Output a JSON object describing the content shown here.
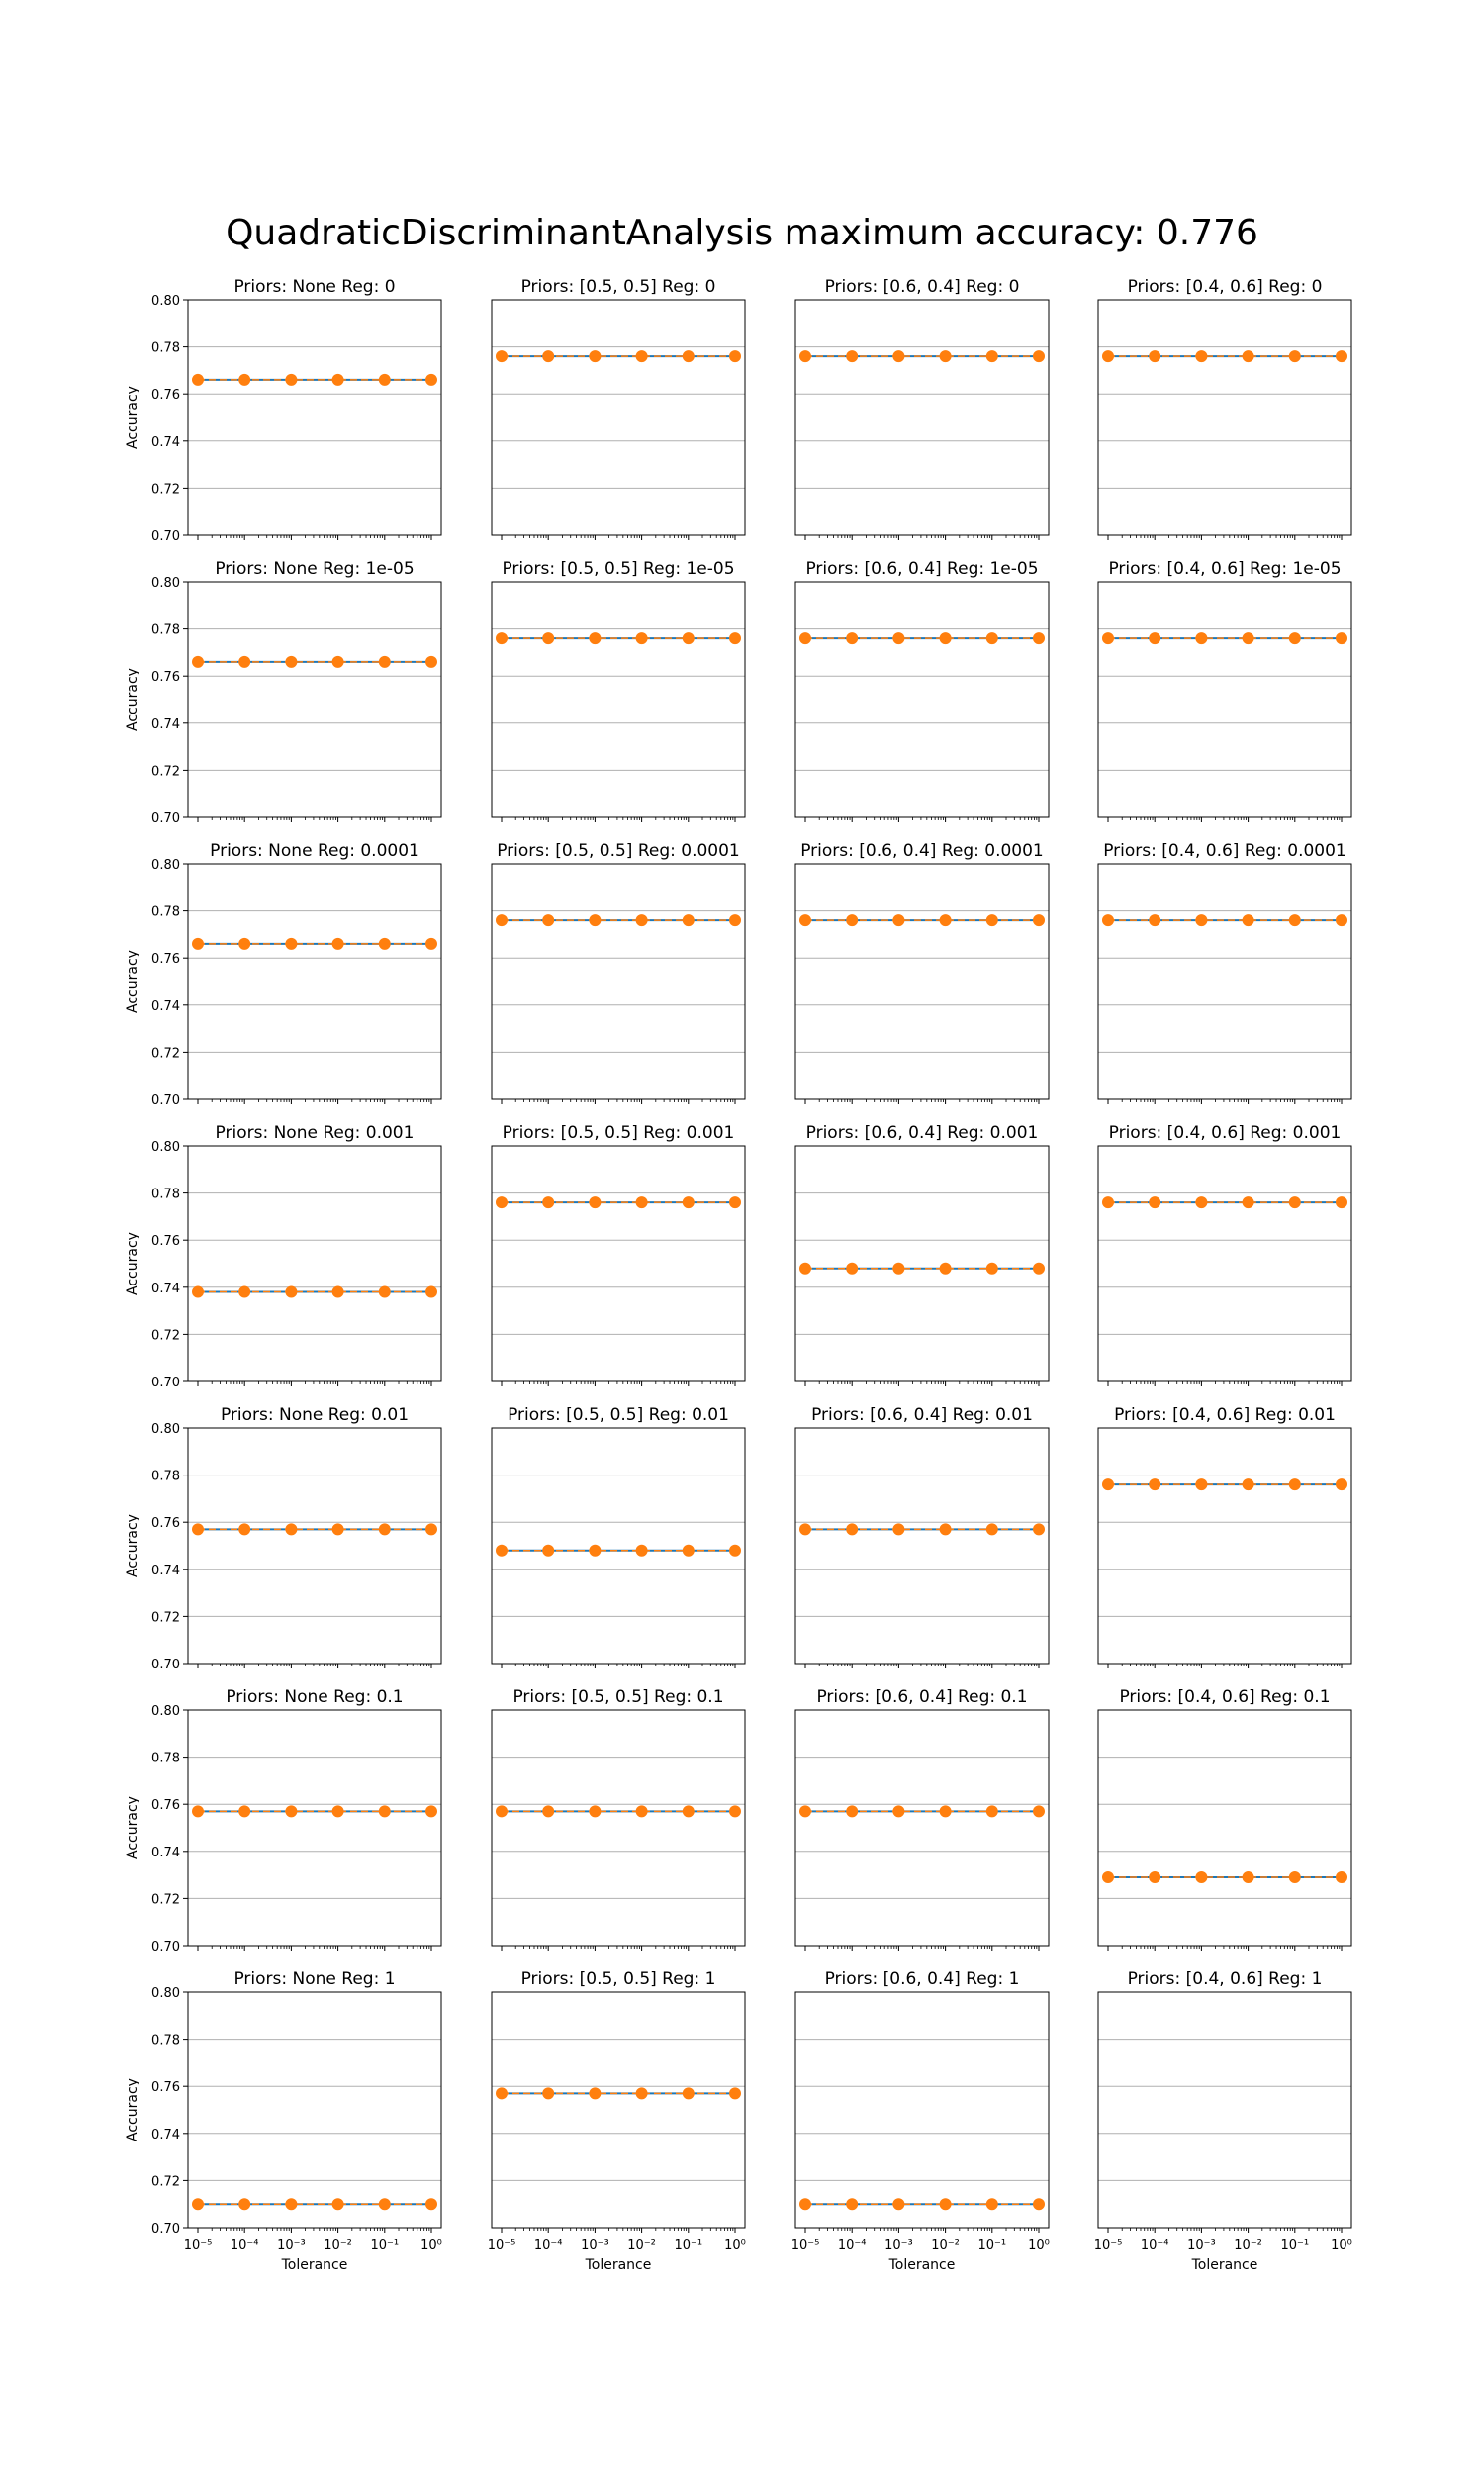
{
  "figure": {
    "suptitle": "QuadraticDiscriminantAnalysis maximum accuracy: 0.776",
    "colors": {
      "line": "#1f77b4",
      "marker": "#ff7f0e",
      "grid": "#b0b0b0",
      "axes": "#000000"
    }
  },
  "chart_data": [
    {
      "type": "line",
      "title": "Priors: None Reg: 0",
      "ylabel": "Accuracy",
      "xlabel": "",
      "xscale": "log",
      "ylim": [
        0.7,
        0.8
      ],
      "yticks": [
        "0.70",
        "0.72",
        "0.74",
        "0.76",
        "0.78",
        "0.80"
      ],
      "xticks": [
        "10⁻⁵",
        "10⁻⁴",
        "10⁻³",
        "10⁻²",
        "10⁻¹",
        "10⁰"
      ],
      "grid": "y",
      "x": [
        1e-05,
        0.0001,
        0.001,
        0.01,
        0.1,
        1
      ],
      "series": [
        {
          "values": [
            0.766,
            0.766,
            0.766,
            0.766,
            0.766,
            0.766
          ]
        }
      ]
    },
    {
      "type": "line",
      "title": "Priors: [0.5, 0.5] Reg: 0",
      "ylabel": "",
      "xlabel": "",
      "xscale": "log",
      "ylim": [
        0.7,
        0.8
      ],
      "yticks": [],
      "xticks": [
        "10⁻⁵",
        "10⁻⁴",
        "10⁻³",
        "10⁻²",
        "10⁻¹",
        "10⁰"
      ],
      "grid": "y",
      "x": [
        1e-05,
        0.0001,
        0.001,
        0.01,
        0.1,
        1
      ],
      "series": [
        {
          "values": [
            0.776,
            0.776,
            0.776,
            0.776,
            0.776,
            0.776
          ]
        }
      ]
    },
    {
      "type": "line",
      "title": "Priors: [0.6, 0.4] Reg: 0",
      "ylabel": "",
      "xlabel": "",
      "xscale": "log",
      "ylim": [
        0.7,
        0.8
      ],
      "yticks": [],
      "xticks": [
        "10⁻⁵",
        "10⁻⁴",
        "10⁻³",
        "10⁻²",
        "10⁻¹",
        "10⁰"
      ],
      "grid": "y",
      "x": [
        1e-05,
        0.0001,
        0.001,
        0.01,
        0.1,
        1
      ],
      "series": [
        {
          "values": [
            0.776,
            0.776,
            0.776,
            0.776,
            0.776,
            0.776
          ]
        }
      ]
    },
    {
      "type": "line",
      "title": "Priors: [0.4, 0.6] Reg: 0",
      "ylabel": "",
      "xlabel": "",
      "xscale": "log",
      "ylim": [
        0.7,
        0.8
      ],
      "yticks": [],
      "xticks": [
        "10⁻⁵",
        "10⁻⁴",
        "10⁻³",
        "10⁻²",
        "10⁻¹",
        "10⁰"
      ],
      "grid": "y",
      "x": [
        1e-05,
        0.0001,
        0.001,
        0.01,
        0.1,
        1
      ],
      "series": [
        {
          "values": [
            0.776,
            0.776,
            0.776,
            0.776,
            0.776,
            0.776
          ]
        }
      ]
    },
    {
      "type": "line",
      "title": "Priors: None Reg: 1e-05",
      "ylabel": "Accuracy",
      "xlabel": "",
      "xscale": "log",
      "ylim": [
        0.7,
        0.8
      ],
      "yticks": [
        "0.70",
        "0.72",
        "0.74",
        "0.76",
        "0.78",
        "0.80"
      ],
      "xticks": [
        "10⁻⁵",
        "10⁻⁴",
        "10⁻³",
        "10⁻²",
        "10⁻¹",
        "10⁰"
      ],
      "grid": "y",
      "x": [
        1e-05,
        0.0001,
        0.001,
        0.01,
        0.1,
        1
      ],
      "series": [
        {
          "values": [
            0.766,
            0.766,
            0.766,
            0.766,
            0.766,
            0.766
          ]
        }
      ]
    },
    {
      "type": "line",
      "title": "Priors: [0.5, 0.5] Reg: 1e-05",
      "ylabel": "",
      "xlabel": "",
      "xscale": "log",
      "ylim": [
        0.7,
        0.8
      ],
      "yticks": [],
      "xticks": [
        "10⁻⁵",
        "10⁻⁴",
        "10⁻³",
        "10⁻²",
        "10⁻¹",
        "10⁰"
      ],
      "grid": "y",
      "x": [
        1e-05,
        0.0001,
        0.001,
        0.01,
        0.1,
        1
      ],
      "series": [
        {
          "values": [
            0.776,
            0.776,
            0.776,
            0.776,
            0.776,
            0.776
          ]
        }
      ]
    },
    {
      "type": "line",
      "title": "Priors: [0.6, 0.4] Reg: 1e-05",
      "ylabel": "",
      "xlabel": "",
      "xscale": "log",
      "ylim": [
        0.7,
        0.8
      ],
      "yticks": [],
      "xticks": [
        "10⁻⁵",
        "10⁻⁴",
        "10⁻³",
        "10⁻²",
        "10⁻¹",
        "10⁰"
      ],
      "grid": "y",
      "x": [
        1e-05,
        0.0001,
        0.001,
        0.01,
        0.1,
        1
      ],
      "series": [
        {
          "values": [
            0.776,
            0.776,
            0.776,
            0.776,
            0.776,
            0.776
          ]
        }
      ]
    },
    {
      "type": "line",
      "title": "Priors: [0.4, 0.6] Reg: 1e-05",
      "ylabel": "",
      "xlabel": "",
      "xscale": "log",
      "ylim": [
        0.7,
        0.8
      ],
      "yticks": [],
      "xticks": [
        "10⁻⁵",
        "10⁻⁴",
        "10⁻³",
        "10⁻²",
        "10⁻¹",
        "10⁰"
      ],
      "grid": "y",
      "x": [
        1e-05,
        0.0001,
        0.001,
        0.01,
        0.1,
        1
      ],
      "series": [
        {
          "values": [
            0.776,
            0.776,
            0.776,
            0.776,
            0.776,
            0.776
          ]
        }
      ]
    },
    {
      "type": "line",
      "title": "Priors: None Reg: 0.0001",
      "ylabel": "Accuracy",
      "xlabel": "",
      "xscale": "log",
      "ylim": [
        0.7,
        0.8
      ],
      "yticks": [
        "0.70",
        "0.72",
        "0.74",
        "0.76",
        "0.78",
        "0.80"
      ],
      "xticks": [
        "10⁻⁵",
        "10⁻⁴",
        "10⁻³",
        "10⁻²",
        "10⁻¹",
        "10⁰"
      ],
      "grid": "y",
      "x": [
        1e-05,
        0.0001,
        0.001,
        0.01,
        0.1,
        1
      ],
      "series": [
        {
          "values": [
            0.766,
            0.766,
            0.766,
            0.766,
            0.766,
            0.766
          ]
        }
      ]
    },
    {
      "type": "line",
      "title": "Priors: [0.5, 0.5] Reg: 0.0001",
      "ylabel": "",
      "xlabel": "",
      "xscale": "log",
      "ylim": [
        0.7,
        0.8
      ],
      "yticks": [],
      "xticks": [
        "10⁻⁵",
        "10⁻⁴",
        "10⁻³",
        "10⁻²",
        "10⁻¹",
        "10⁰"
      ],
      "grid": "y",
      "x": [
        1e-05,
        0.0001,
        0.001,
        0.01,
        0.1,
        1
      ],
      "series": [
        {
          "values": [
            0.776,
            0.776,
            0.776,
            0.776,
            0.776,
            0.776
          ]
        }
      ]
    },
    {
      "type": "line",
      "title": "Priors: [0.6, 0.4] Reg: 0.0001",
      "ylabel": "",
      "xlabel": "",
      "xscale": "log",
      "ylim": [
        0.7,
        0.8
      ],
      "yticks": [],
      "xticks": [
        "10⁻⁵",
        "10⁻⁴",
        "10⁻³",
        "10⁻²",
        "10⁻¹",
        "10⁰"
      ],
      "grid": "y",
      "x": [
        1e-05,
        0.0001,
        0.001,
        0.01,
        0.1,
        1
      ],
      "series": [
        {
          "values": [
            0.776,
            0.776,
            0.776,
            0.776,
            0.776,
            0.776
          ]
        }
      ]
    },
    {
      "type": "line",
      "title": "Priors: [0.4, 0.6] Reg: 0.0001",
      "ylabel": "",
      "xlabel": "",
      "xscale": "log",
      "ylim": [
        0.7,
        0.8
      ],
      "yticks": [],
      "xticks": [
        "10⁻⁵",
        "10⁻⁴",
        "10⁻³",
        "10⁻²",
        "10⁻¹",
        "10⁰"
      ],
      "grid": "y",
      "x": [
        1e-05,
        0.0001,
        0.001,
        0.01,
        0.1,
        1
      ],
      "series": [
        {
          "values": [
            0.776,
            0.776,
            0.776,
            0.776,
            0.776,
            0.776
          ]
        }
      ]
    },
    {
      "type": "line",
      "title": "Priors: None Reg: 0.001",
      "ylabel": "Accuracy",
      "xlabel": "",
      "xscale": "log",
      "ylim": [
        0.7,
        0.8
      ],
      "yticks": [
        "0.70",
        "0.72",
        "0.74",
        "0.76",
        "0.78",
        "0.80"
      ],
      "xticks": [
        "10⁻⁵",
        "10⁻⁴",
        "10⁻³",
        "10⁻²",
        "10⁻¹",
        "10⁰"
      ],
      "grid": "y",
      "x": [
        1e-05,
        0.0001,
        0.001,
        0.01,
        0.1,
        1
      ],
      "series": [
        {
          "values": [
            0.738,
            0.738,
            0.738,
            0.738,
            0.738,
            0.738
          ]
        }
      ]
    },
    {
      "type": "line",
      "title": "Priors: [0.5, 0.5] Reg: 0.001",
      "ylabel": "",
      "xlabel": "",
      "xscale": "log",
      "ylim": [
        0.7,
        0.8
      ],
      "yticks": [],
      "xticks": [
        "10⁻⁵",
        "10⁻⁴",
        "10⁻³",
        "10⁻²",
        "10⁻¹",
        "10⁰"
      ],
      "grid": "y",
      "x": [
        1e-05,
        0.0001,
        0.001,
        0.01,
        0.1,
        1
      ],
      "series": [
        {
          "values": [
            0.776,
            0.776,
            0.776,
            0.776,
            0.776,
            0.776
          ]
        }
      ]
    },
    {
      "type": "line",
      "title": "Priors: [0.6, 0.4] Reg: 0.001",
      "ylabel": "",
      "xlabel": "",
      "xscale": "log",
      "ylim": [
        0.7,
        0.8
      ],
      "yticks": [],
      "xticks": [
        "10⁻⁵",
        "10⁻⁴",
        "10⁻³",
        "10⁻²",
        "10⁻¹",
        "10⁰"
      ],
      "grid": "y",
      "x": [
        1e-05,
        0.0001,
        0.001,
        0.01,
        0.1,
        1
      ],
      "series": [
        {
          "values": [
            0.748,
            0.748,
            0.748,
            0.748,
            0.748,
            0.748
          ]
        }
      ]
    },
    {
      "type": "line",
      "title": "Priors: [0.4, 0.6] Reg: 0.001",
      "ylabel": "",
      "xlabel": "",
      "xscale": "log",
      "ylim": [
        0.7,
        0.8
      ],
      "yticks": [],
      "xticks": [
        "10⁻⁵",
        "10⁻⁴",
        "10⁻³",
        "10⁻²",
        "10⁻¹",
        "10⁰"
      ],
      "grid": "y",
      "x": [
        1e-05,
        0.0001,
        0.001,
        0.01,
        0.1,
        1
      ],
      "series": [
        {
          "values": [
            0.776,
            0.776,
            0.776,
            0.776,
            0.776,
            0.776
          ]
        }
      ]
    },
    {
      "type": "line",
      "title": "Priors: None Reg: 0.01",
      "ylabel": "Accuracy",
      "xlabel": "",
      "xscale": "log",
      "ylim": [
        0.7,
        0.8
      ],
      "yticks": [
        "0.70",
        "0.72",
        "0.74",
        "0.76",
        "0.78",
        "0.80"
      ],
      "xticks": [
        "10⁻⁵",
        "10⁻⁴",
        "10⁻³",
        "10⁻²",
        "10⁻¹",
        "10⁰"
      ],
      "grid": "y",
      "x": [
        1e-05,
        0.0001,
        0.001,
        0.01,
        0.1,
        1
      ],
      "series": [
        {
          "values": [
            0.757,
            0.757,
            0.757,
            0.757,
            0.757,
            0.757
          ]
        }
      ]
    },
    {
      "type": "line",
      "title": "Priors: [0.5, 0.5] Reg: 0.01",
      "ylabel": "",
      "xlabel": "",
      "xscale": "log",
      "ylim": [
        0.7,
        0.8
      ],
      "yticks": [],
      "xticks": [
        "10⁻⁵",
        "10⁻⁴",
        "10⁻³",
        "10⁻²",
        "10⁻¹",
        "10⁰"
      ],
      "grid": "y",
      "x": [
        1e-05,
        0.0001,
        0.001,
        0.01,
        0.1,
        1
      ],
      "series": [
        {
          "values": [
            0.748,
            0.748,
            0.748,
            0.748,
            0.748,
            0.748
          ]
        }
      ]
    },
    {
      "type": "line",
      "title": "Priors: [0.6, 0.4] Reg: 0.01",
      "ylabel": "",
      "xlabel": "",
      "xscale": "log",
      "ylim": [
        0.7,
        0.8
      ],
      "yticks": [],
      "xticks": [
        "10⁻⁵",
        "10⁻⁴",
        "10⁻³",
        "10⁻²",
        "10⁻¹",
        "10⁰"
      ],
      "grid": "y",
      "x": [
        1e-05,
        0.0001,
        0.001,
        0.01,
        0.1,
        1
      ],
      "series": [
        {
          "values": [
            0.757,
            0.757,
            0.757,
            0.757,
            0.757,
            0.757
          ]
        }
      ]
    },
    {
      "type": "line",
      "title": "Priors: [0.4, 0.6] Reg: 0.01",
      "ylabel": "",
      "xlabel": "",
      "xscale": "log",
      "ylim": [
        0.7,
        0.8
      ],
      "yticks": [],
      "xticks": [
        "10⁻⁵",
        "10⁻⁴",
        "10⁻³",
        "10⁻²",
        "10⁻¹",
        "10⁰"
      ],
      "grid": "y",
      "x": [
        1e-05,
        0.0001,
        0.001,
        0.01,
        0.1,
        1
      ],
      "series": [
        {
          "values": [
            0.776,
            0.776,
            0.776,
            0.776,
            0.776,
            0.776
          ]
        }
      ]
    },
    {
      "type": "line",
      "title": "Priors: None Reg: 0.1",
      "ylabel": "Accuracy",
      "xlabel": "",
      "xscale": "log",
      "ylim": [
        0.7,
        0.8
      ],
      "yticks": [
        "0.70",
        "0.72",
        "0.74",
        "0.76",
        "0.78",
        "0.80"
      ],
      "xticks": [
        "10⁻⁵",
        "10⁻⁴",
        "10⁻³",
        "10⁻²",
        "10⁻¹",
        "10⁰"
      ],
      "grid": "y",
      "x": [
        1e-05,
        0.0001,
        0.001,
        0.01,
        0.1,
        1
      ],
      "series": [
        {
          "values": [
            0.757,
            0.757,
            0.757,
            0.757,
            0.757,
            0.757
          ]
        }
      ]
    },
    {
      "type": "line",
      "title": "Priors: [0.5, 0.5] Reg: 0.1",
      "ylabel": "",
      "xlabel": "",
      "xscale": "log",
      "ylim": [
        0.7,
        0.8
      ],
      "yticks": [],
      "xticks": [
        "10⁻⁵",
        "10⁻⁴",
        "10⁻³",
        "10⁻²",
        "10⁻¹",
        "10⁰"
      ],
      "grid": "y",
      "x": [
        1e-05,
        0.0001,
        0.001,
        0.01,
        0.1,
        1
      ],
      "series": [
        {
          "values": [
            0.757,
            0.757,
            0.757,
            0.757,
            0.757,
            0.757
          ]
        }
      ]
    },
    {
      "type": "line",
      "title": "Priors: [0.6, 0.4] Reg: 0.1",
      "ylabel": "",
      "xlabel": "",
      "xscale": "log",
      "ylim": [
        0.7,
        0.8
      ],
      "yticks": [],
      "xticks": [
        "10⁻⁵",
        "10⁻⁴",
        "10⁻³",
        "10⁻²",
        "10⁻¹",
        "10⁰"
      ],
      "grid": "y",
      "x": [
        1e-05,
        0.0001,
        0.001,
        0.01,
        0.1,
        1
      ],
      "series": [
        {
          "values": [
            0.757,
            0.757,
            0.757,
            0.757,
            0.757,
            0.757
          ]
        }
      ]
    },
    {
      "type": "line",
      "title": "Priors: [0.4, 0.6] Reg: 0.1",
      "ylabel": "",
      "xlabel": "",
      "xscale": "log",
      "ylim": [
        0.7,
        0.8
      ],
      "yticks": [],
      "xticks": [
        "10⁻⁵",
        "10⁻⁴",
        "10⁻³",
        "10⁻²",
        "10⁻¹",
        "10⁰"
      ],
      "grid": "y",
      "x": [
        1e-05,
        0.0001,
        0.001,
        0.01,
        0.1,
        1
      ],
      "series": [
        {
          "values": [
            0.729,
            0.729,
            0.729,
            0.729,
            0.729,
            0.729
          ]
        }
      ]
    },
    {
      "type": "line",
      "title": "Priors: None Reg: 1",
      "ylabel": "Accuracy",
      "xlabel": "Tolerance",
      "xscale": "log",
      "ylim": [
        0.7,
        0.8
      ],
      "yticks": [
        "0.70",
        "0.72",
        "0.74",
        "0.76",
        "0.78",
        "0.80"
      ],
      "xticks": [
        "10⁻⁵",
        "10⁻⁴",
        "10⁻³",
        "10⁻²",
        "10⁻¹",
        "10⁰"
      ],
      "xticklabels_visible": true,
      "grid": "y",
      "x": [
        1e-05,
        0.0001,
        0.001,
        0.01,
        0.1,
        1
      ],
      "series": [
        {
          "values": [
            0.71,
            0.71,
            0.71,
            0.71,
            0.71,
            0.71
          ]
        }
      ]
    },
    {
      "type": "line",
      "title": "Priors: [0.5, 0.5] Reg: 1",
      "ylabel": "",
      "xlabel": "Tolerance",
      "xscale": "log",
      "ylim": [
        0.7,
        0.8
      ],
      "yticks": [],
      "xticks": [
        "10⁻⁵",
        "10⁻⁴",
        "10⁻³",
        "10⁻²",
        "10⁻¹",
        "10⁰"
      ],
      "xticklabels_visible": true,
      "grid": "y",
      "x": [
        1e-05,
        0.0001,
        0.001,
        0.01,
        0.1,
        1
      ],
      "series": [
        {
          "values": [
            0.757,
            0.757,
            0.757,
            0.757,
            0.757,
            0.757
          ]
        }
      ]
    },
    {
      "type": "line",
      "title": "Priors: [0.6, 0.4] Reg: 1",
      "ylabel": "",
      "xlabel": "Tolerance",
      "xscale": "log",
      "ylim": [
        0.7,
        0.8
      ],
      "yticks": [],
      "xticks": [
        "10⁻⁵",
        "10⁻⁴",
        "10⁻³",
        "10⁻²",
        "10⁻¹",
        "10⁰"
      ],
      "xticklabels_visible": true,
      "grid": "y",
      "x": [
        1e-05,
        0.0001,
        0.001,
        0.01,
        0.1,
        1
      ],
      "series": [
        {
          "values": [
            0.71,
            0.71,
            0.71,
            0.71,
            0.71,
            0.71
          ]
        }
      ]
    },
    {
      "type": "line",
      "title": "Priors: [0.4, 0.6] Reg: 1",
      "ylabel": "",
      "xlabel": "Tolerance",
      "xscale": "log",
      "ylim": [
        0.7,
        0.8
      ],
      "yticks": [],
      "xticks": [
        "10⁻⁵",
        "10⁻⁴",
        "10⁻³",
        "10⁻²",
        "10⁻¹",
        "10⁰"
      ],
      "xticklabels_visible": true,
      "grid": "y",
      "x": [
        1e-05,
        0.0001,
        0.001,
        0.01,
        0.1,
        1
      ],
      "series": []
    }
  ]
}
